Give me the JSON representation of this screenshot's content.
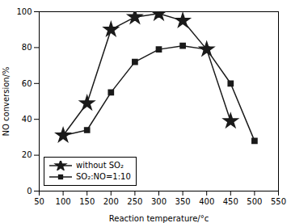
{
  "chart_data": {
    "type": "line",
    "xlabel": "Reaction temperature/°c",
    "ylabel": "NO conversion/%",
    "x": [
      100,
      150,
      200,
      250,
      300,
      350,
      400,
      450,
      500
    ],
    "series": [
      {
        "name": "without SO₂",
        "color": "#1a1a1a",
        "marker": "star",
        "values": [
          31,
          49,
          90,
          97,
          99,
          95,
          79,
          39,
          null
        ]
      },
      {
        "name": "SO₂:NO=1:10",
        "color": "#1a1a1a",
        "marker": "square",
        "values": [
          31,
          34,
          55,
          72,
          79,
          81,
          79,
          60,
          28
        ]
      }
    ],
    "xlim": [
      50,
      550
    ],
    "ylim": [
      0,
      100
    ],
    "xticks": [
      50,
      100,
      150,
      200,
      250,
      300,
      350,
      400,
      450,
      500,
      550
    ],
    "yticks": [
      0,
      20,
      40,
      60,
      80,
      100
    ],
    "grid": false,
    "legend": "lower left"
  }
}
